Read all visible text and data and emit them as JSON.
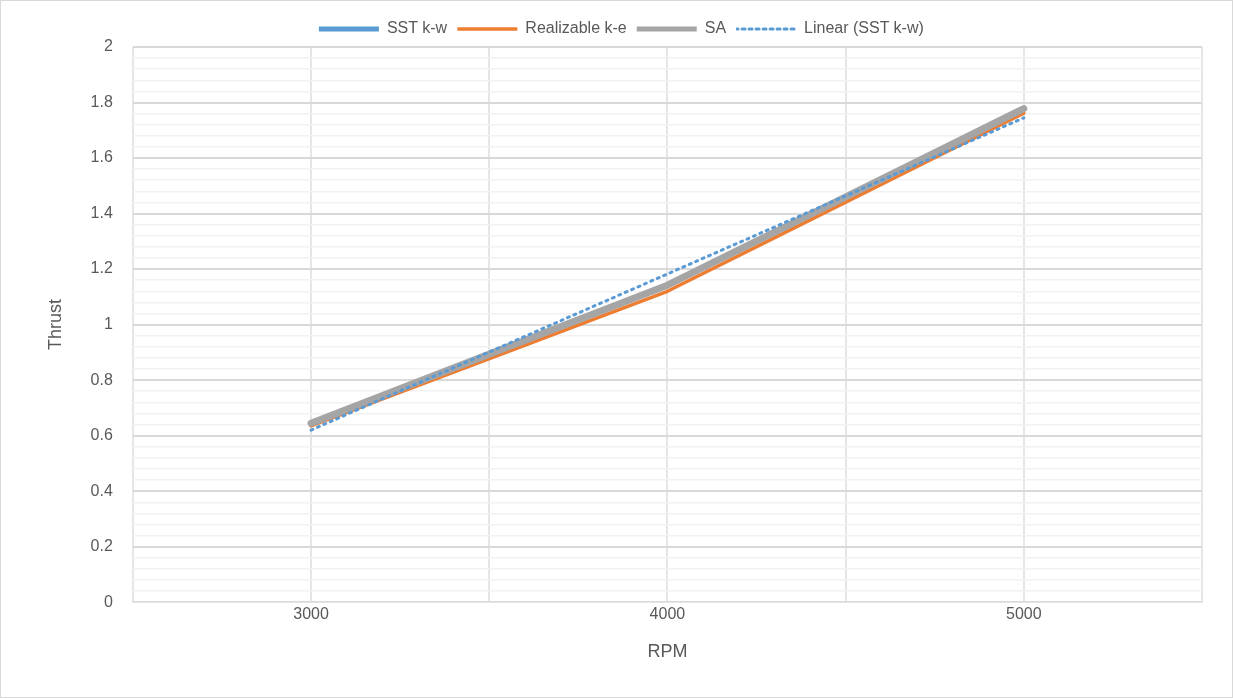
{
  "chart_data": {
    "type": "line",
    "xlabel": "RPM",
    "ylabel": "Thrust",
    "x": [
      3000,
      4000,
      5000
    ],
    "xlim": [
      2500,
      5500
    ],
    "xticks": [
      {
        "value": 2500,
        "label": null
      },
      3000,
      {
        "value": 3500,
        "label": null
      },
      4000,
      {
        "value": 4500,
        "label": null
      },
      5000,
      {
        "value": 5500,
        "label": null
      }
    ],
    "ylim": [
      0,
      2
    ],
    "yticks": [
      0,
      {
        "value": 0.04,
        "label": null
      },
      {
        "value": 0.08,
        "label": null
      },
      {
        "value": 0.12,
        "label": null
      },
      {
        "value": 0.16,
        "label": null
      },
      0.2,
      {
        "value": 0.24,
        "label": null
      },
      {
        "value": 0.28,
        "label": null
      },
      {
        "value": 0.32,
        "label": null
      },
      {
        "value": 0.36,
        "label": null
      },
      0.4,
      {
        "value": 0.44,
        "label": null
      },
      {
        "value": 0.48,
        "label": null
      },
      {
        "value": 0.52,
        "label": null
      },
      {
        "value": 0.56,
        "label": null
      },
      0.6,
      {
        "value": 0.64,
        "label": null
      },
      {
        "value": 0.68,
        "label": null
      },
      {
        "value": 0.72,
        "label": null
      },
      {
        "value": 0.76,
        "label": null
      },
      0.8,
      {
        "value": 0.84,
        "label": null
      },
      {
        "value": 0.88,
        "label": null
      },
      {
        "value": 0.92,
        "label": null
      },
      {
        "value": 0.96,
        "label": null
      },
      1,
      {
        "value": 1.04,
        "label": null
      },
      {
        "value": 1.08,
        "label": null
      },
      {
        "value": 1.12,
        "label": null
      },
      {
        "value": 1.16,
        "label": null
      },
      1.2,
      {
        "value": 1.24,
        "label": null
      },
      {
        "value": 1.28,
        "label": null
      },
      {
        "value": 1.32,
        "label": null
      },
      {
        "value": 1.36,
        "label": null
      },
      1.4,
      {
        "value": 1.44,
        "label": null
      },
      {
        "value": 1.48,
        "label": null
      },
      {
        "value": 1.52,
        "label": null
      },
      {
        "value": 1.56,
        "label": null
      },
      1.6,
      {
        "value": 1.64,
        "label": null
      },
      {
        "value": 1.68,
        "label": null
      },
      {
        "value": 1.72,
        "label": null
      },
      {
        "value": 1.76,
        "label": null
      },
      1.8,
      {
        "value": 1.84,
        "label": null
      },
      {
        "value": 1.88,
        "label": null
      },
      {
        "value": 1.92,
        "label": null
      },
      {
        "value": 1.96,
        "label": null
      },
      2
    ],
    "grid": true,
    "legend": "top",
    "marker": "none",
    "line_style": "solid",
    "series": [
      {
        "name": "SST k-w",
        "color": "#5b9bd5",
        "values": [
          null,
          null,
          null
        ]
      },
      {
        "name": "Realizable k-e",
        "color": "#ed7d31",
        "values": [
          0.635,
          1.12,
          1.762
        ]
      },
      {
        "name": "SA",
        "color": "#a5a5a5",
        "values": [
          0.645,
          1.142,
          1.778
        ]
      },
      {
        "name": "Linear (SST k-w)",
        "color": "#5b9bd5",
        "line_style": "dotted",
        "x": [
          3000,
          5000
        ],
        "values": [
          0.62,
          1.745
        ]
      }
    ]
  }
}
